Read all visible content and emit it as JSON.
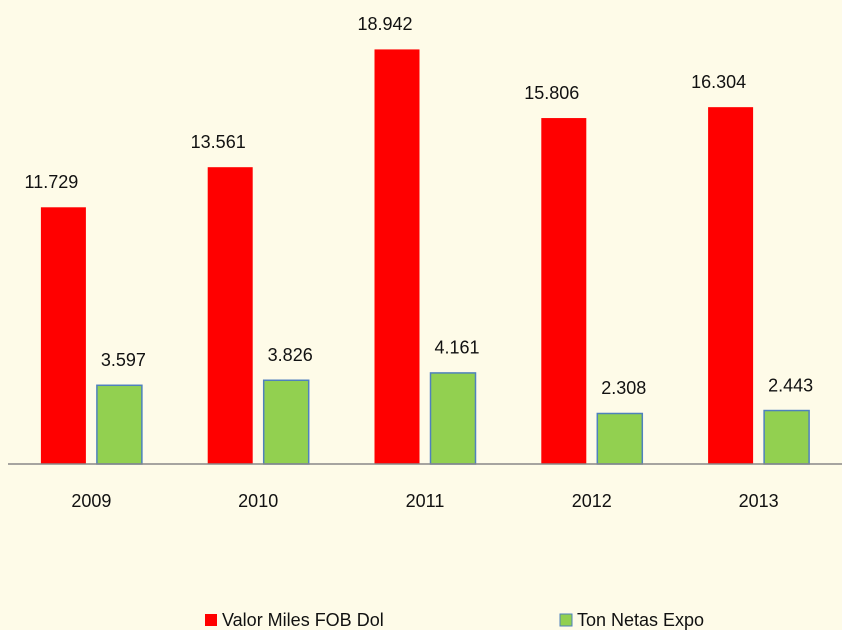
{
  "chart_data": {
    "type": "bar",
    "categories": [
      "2009",
      "2010",
      "2011",
      "2012",
      "2013"
    ],
    "series": [
      {
        "name": "Valor Miles FOB Dol",
        "color": "#ff0000",
        "values": [
          11.729,
          13.561,
          18.942,
          15.806,
          16.304
        ]
      },
      {
        "name": "Ton Netas Expo",
        "color": "#92d050",
        "values": [
          3.597,
          3.826,
          4.161,
          2.308,
          2.443
        ]
      }
    ],
    "ylim": [
      0,
      21.2
    ]
  }
}
